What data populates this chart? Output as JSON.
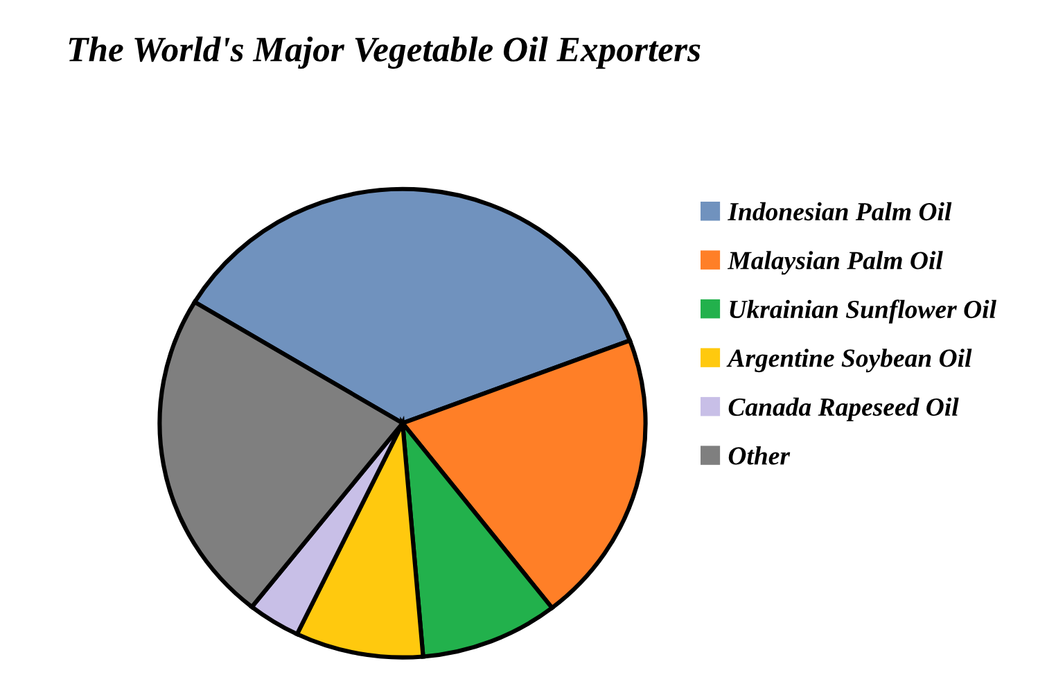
{
  "chart_data": {
    "type": "pie",
    "title": "The World's Major Vegetable Oil Exporters",
    "categories": [
      "Indonesian Palm Oil",
      "Malaysian Palm Oil",
      "Ukrainian Sunflower Oil",
      "Argentine Soybean Oil",
      "Canada Rapeseed Oil",
      "Other"
    ],
    "values": [
      35.6,
      20.2,
      9.2,
      8.5,
      3.5,
      23.0
    ],
    "colors": [
      "#7092be",
      "#ff7f27",
      "#22b14c",
      "#ffc90e",
      "#c8bfe7",
      "#7f7f7f"
    ],
    "legend": "right"
  }
}
